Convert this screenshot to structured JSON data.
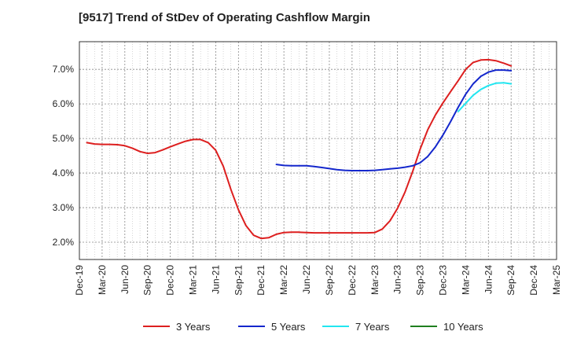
{
  "chart_data": {
    "type": "line",
    "title": "[9517]  Trend of StDev of Operating Cashflow Margin",
    "xlabel": "",
    "ylabel": "",
    "x_ticks": [
      "Dec-19",
      "Mar-20",
      "Jun-20",
      "Sep-20",
      "Dec-20",
      "Mar-21",
      "Jun-21",
      "Sep-21",
      "Dec-21",
      "Mar-22",
      "Jun-22",
      "Sep-22",
      "Dec-22",
      "Mar-23",
      "Jun-23",
      "Sep-23",
      "Dec-23",
      "Mar-24",
      "Jun-24",
      "Sep-24",
      "Dec-24",
      "Mar-25"
    ],
    "y_ticks": [
      "2.0%",
      "3.0%",
      "4.0%",
      "5.0%",
      "6.0%",
      "7.0%"
    ],
    "ylim": [
      1.5,
      7.8
    ],
    "xlim": [
      0,
      21
    ],
    "grid": true,
    "legend_position": "bottom",
    "series": [
      {
        "name": "3 Years",
        "color": "#dd1f1f",
        "points": [
          [
            0.33,
            4.88
          ],
          [
            0.67,
            4.84
          ],
          [
            1,
            4.83
          ],
          [
            1.33,
            4.83
          ],
          [
            1.67,
            4.82
          ],
          [
            2,
            4.79
          ],
          [
            2.33,
            4.72
          ],
          [
            2.67,
            4.62
          ],
          [
            3,
            4.57
          ],
          [
            3.33,
            4.59
          ],
          [
            3.67,
            4.67
          ],
          [
            4,
            4.76
          ],
          [
            4.33,
            4.84
          ],
          [
            4.67,
            4.92
          ],
          [
            5,
            4.97
          ],
          [
            5.33,
            4.97
          ],
          [
            5.67,
            4.88
          ],
          [
            6,
            4.66
          ],
          [
            6.33,
            4.2
          ],
          [
            6.67,
            3.52
          ],
          [
            7,
            2.94
          ],
          [
            7.33,
            2.48
          ],
          [
            7.67,
            2.2
          ],
          [
            8,
            2.11
          ],
          [
            8.33,
            2.13
          ],
          [
            8.67,
            2.23
          ],
          [
            9,
            2.28
          ],
          [
            9.33,
            2.29
          ],
          [
            9.67,
            2.29
          ],
          [
            10,
            2.28
          ],
          [
            10.33,
            2.27
          ],
          [
            10.67,
            2.27
          ],
          [
            11,
            2.27
          ],
          [
            11.33,
            2.27
          ],
          [
            11.67,
            2.27
          ],
          [
            12,
            2.27
          ],
          [
            12.33,
            2.27
          ],
          [
            12.67,
            2.27
          ],
          [
            13,
            2.28
          ],
          [
            13.33,
            2.38
          ],
          [
            13.67,
            2.62
          ],
          [
            14,
            2.98
          ],
          [
            14.33,
            3.45
          ],
          [
            14.67,
            4.05
          ],
          [
            15,
            4.7
          ],
          [
            15.33,
            5.25
          ],
          [
            15.67,
            5.68
          ],
          [
            16,
            6.03
          ],
          [
            16.33,
            6.35
          ],
          [
            16.67,
            6.67
          ],
          [
            17,
            7.0
          ],
          [
            17.33,
            7.2
          ],
          [
            17.67,
            7.27
          ],
          [
            18,
            7.28
          ],
          [
            18.33,
            7.25
          ],
          [
            18.67,
            7.18
          ],
          [
            19,
            7.1
          ]
        ]
      },
      {
        "name": "5 Years",
        "color": "#1427cc",
        "points": [
          [
            8.67,
            4.25
          ],
          [
            9,
            4.22
          ],
          [
            9.33,
            4.21
          ],
          [
            9.67,
            4.21
          ],
          [
            10,
            4.21
          ],
          [
            10.33,
            4.19
          ],
          [
            10.67,
            4.16
          ],
          [
            11,
            4.13
          ],
          [
            11.33,
            4.1
          ],
          [
            11.67,
            4.08
          ],
          [
            12,
            4.07
          ],
          [
            12.33,
            4.07
          ],
          [
            12.67,
            4.07
          ],
          [
            13,
            4.08
          ],
          [
            13.33,
            4.1
          ],
          [
            13.67,
            4.12
          ],
          [
            14,
            4.14
          ],
          [
            14.33,
            4.17
          ],
          [
            14.67,
            4.21
          ],
          [
            15,
            4.3
          ],
          [
            15.33,
            4.48
          ],
          [
            15.67,
            4.76
          ],
          [
            16,
            5.1
          ],
          [
            16.33,
            5.48
          ],
          [
            16.67,
            5.9
          ],
          [
            17,
            6.28
          ],
          [
            17.33,
            6.58
          ],
          [
            17.67,
            6.8
          ],
          [
            18,
            6.92
          ],
          [
            18.33,
            6.98
          ],
          [
            18.67,
            6.98
          ],
          [
            19,
            6.96
          ]
        ]
      },
      {
        "name": "7 Years",
        "color": "#22e6f0",
        "points": [
          [
            16.67,
            5.78
          ],
          [
            17,
            6.02
          ],
          [
            17.33,
            6.25
          ],
          [
            17.67,
            6.42
          ],
          [
            18,
            6.53
          ],
          [
            18.33,
            6.6
          ],
          [
            18.67,
            6.61
          ],
          [
            19,
            6.58
          ]
        ]
      },
      {
        "name": "10 Years",
        "color": "#1f7f1f",
        "points": []
      }
    ]
  }
}
